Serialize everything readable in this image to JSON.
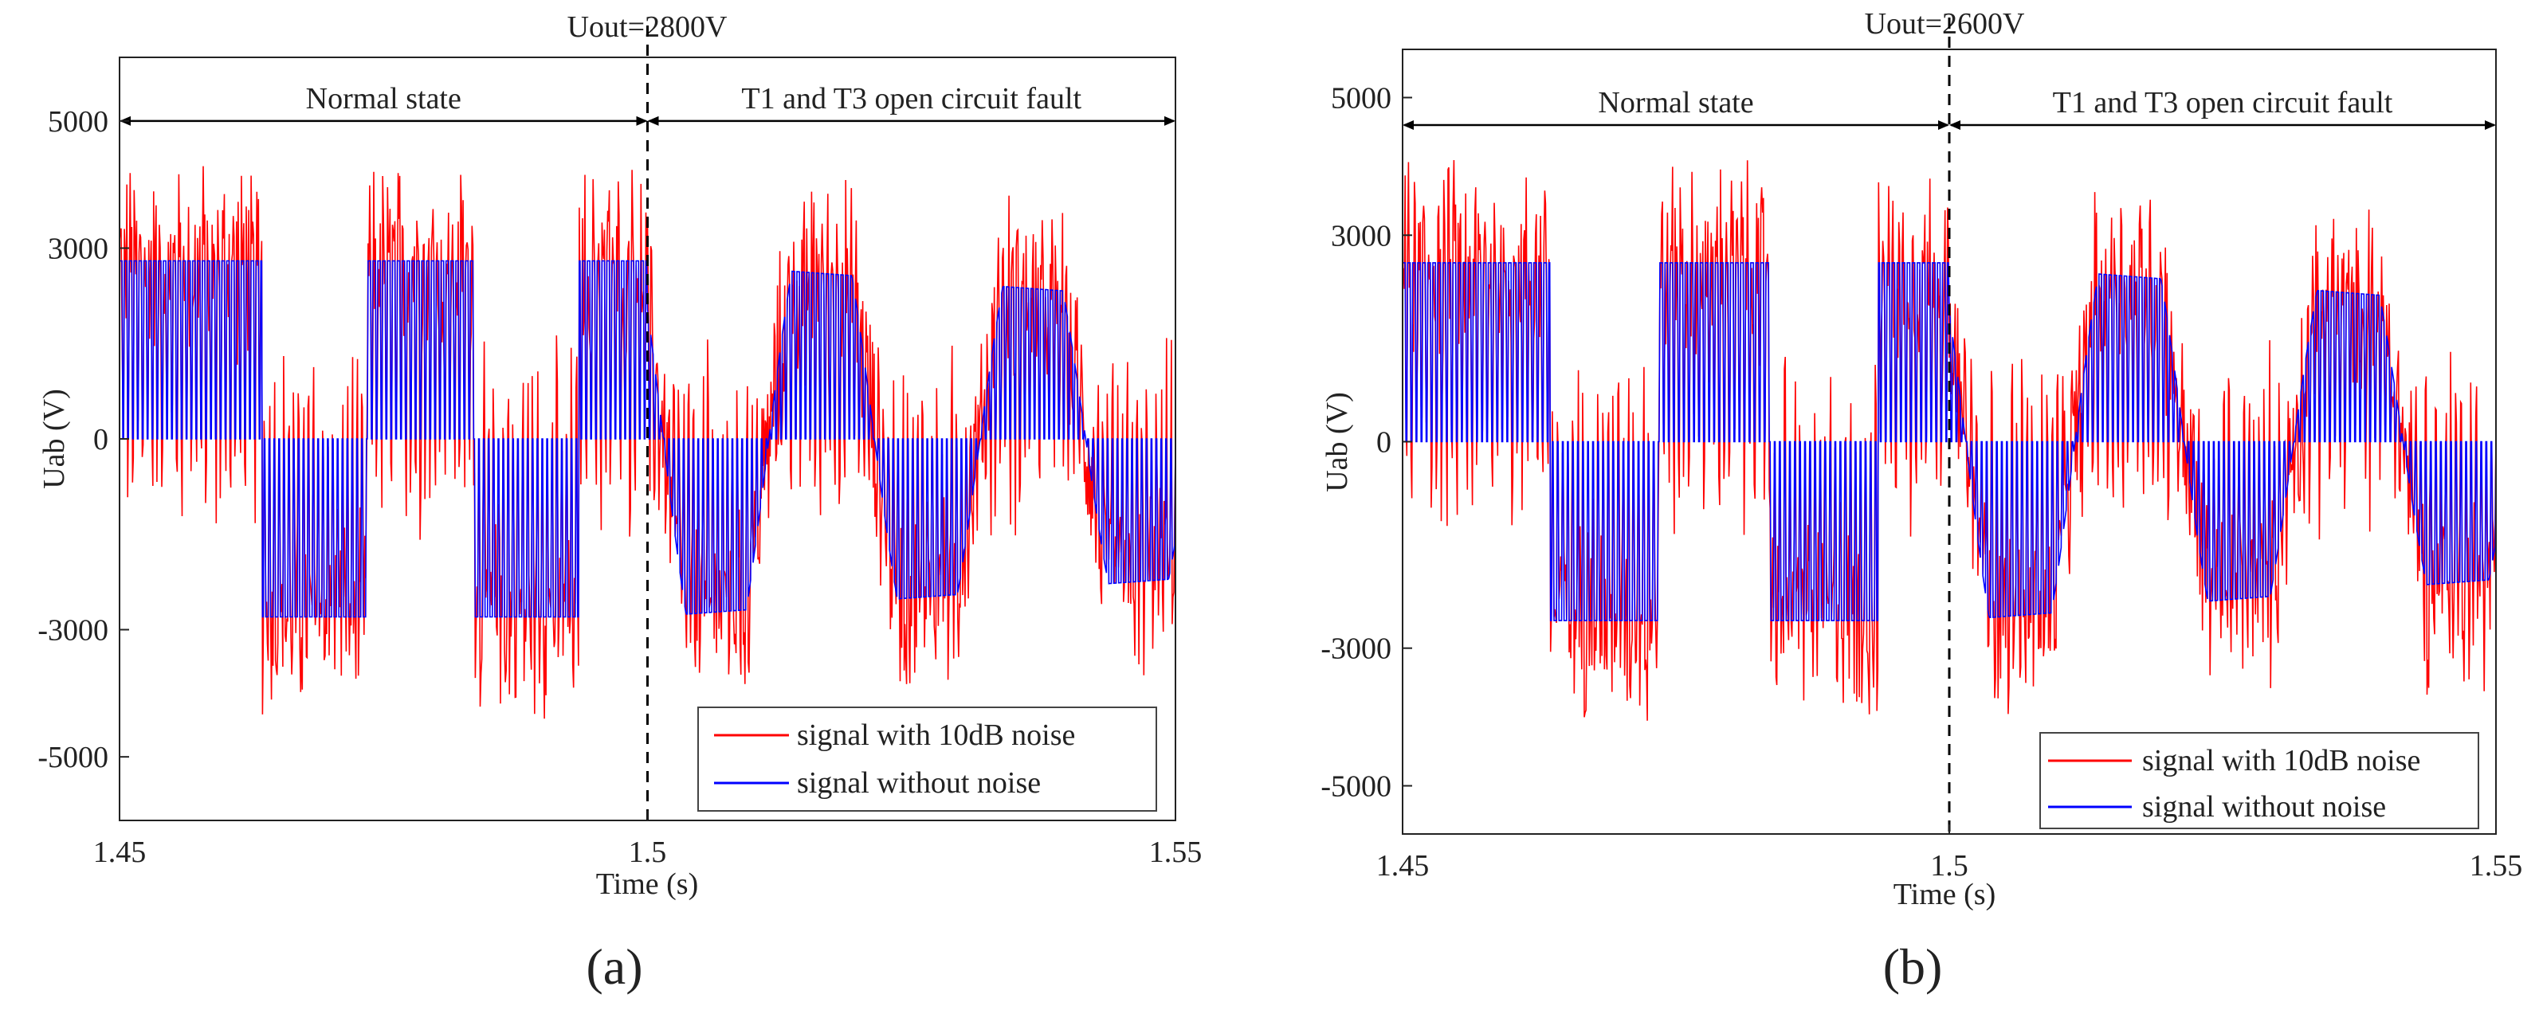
{
  "figure": {
    "panels": [
      "(a)",
      "(b)"
    ]
  },
  "chart_data": [
    {
      "type": "line",
      "panel_label": "(a)",
      "title": "Uout=2800V",
      "xlabel": "Time (s)",
      "ylabel": "Uab (V)",
      "xlim": [
        1.45,
        1.55
      ],
      "ylim": [
        -6000,
        6000
      ],
      "xticks": [
        1.45,
        1.5,
        1.55
      ],
      "xtick_labels": [
        "1.45",
        "1.5",
        "1.55"
      ],
      "yticks": [
        5000,
        3000,
        0,
        -3000,
        -5000
      ],
      "ytick_labels": [
        "5000",
        "3000",
        "0",
        "-3000",
        "-5000"
      ],
      "grid": false,
      "fault_time": 1.5,
      "regions": [
        {
          "label": "Normal state",
          "x": [
            1.45,
            1.5
          ],
          "y": 5000
        },
        {
          "label": "T1 and T3 open circuit fault",
          "x": [
            1.5,
            1.55
          ],
          "y": 5000
        }
      ],
      "fundamental_hz": 50,
      "series": [
        {
          "name": "signal with 10dB noise",
          "color": "#ff0000",
          "normal_level": 2800,
          "fault_level_start": 2800,
          "fault_level_end": 2200,
          "noise_amplitude": 1800
        },
        {
          "name": "signal without noise",
          "color": "#0000ff",
          "normal_level": 2800,
          "fault_level_start": 2800,
          "fault_level_end": 2200
        }
      ],
      "legend_position": "bottom-right"
    },
    {
      "type": "line",
      "panel_label": "(b)",
      "title": "Uout=2600V",
      "xlabel": "Time (s)",
      "ylabel": "Uab (V)",
      "xlim": [
        1.45,
        1.55
      ],
      "ylim": [
        -5700,
        5700
      ],
      "xticks": [
        1.45,
        1.5,
        1.55
      ],
      "xtick_labels": [
        "1.45",
        "1.5",
        "1.55"
      ],
      "yticks": [
        5000,
        3000,
        0,
        -3000,
        -5000
      ],
      "ytick_labels": [
        "5000",
        "3000",
        "0",
        "-3000",
        "-5000"
      ],
      "grid": false,
      "fault_time": 1.5,
      "regions": [
        {
          "label": "Normal state",
          "x": [
            1.45,
            1.5
          ],
          "y": 4600
        },
        {
          "label": "T1 and T3 open circuit fault",
          "x": [
            1.5,
            1.55
          ],
          "y": 4600
        }
      ],
      "fundamental_hz": 50,
      "series": [
        {
          "name": "signal with 10dB noise",
          "color": "#ff0000",
          "normal_level": 2600,
          "fault_level_start": 2600,
          "fault_level_end": 2000,
          "noise_amplitude": 1700
        },
        {
          "name": "signal without noise",
          "color": "#0000ff",
          "normal_level": 2600,
          "fault_level_start": 2600,
          "fault_level_end": 2000
        }
      ],
      "legend_position": "bottom-right"
    }
  ]
}
